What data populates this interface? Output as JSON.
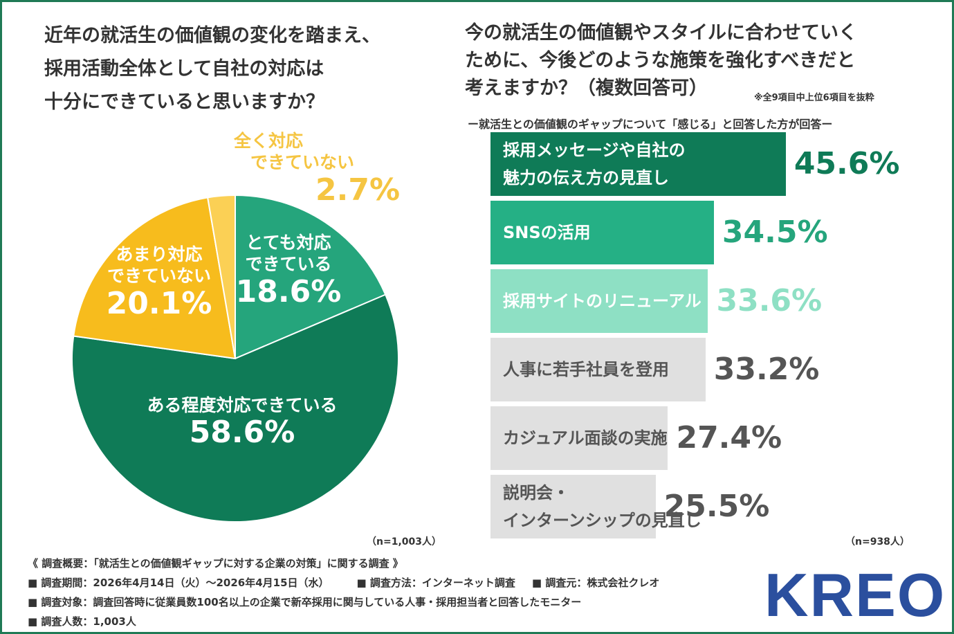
{
  "left_question": {
    "lines": [
      "近年の就活生の価値観の変化を踏まえ、",
      "採用活動全体として自社の対応は",
      "十分にできていると思いますか？"
    ]
  },
  "right_question": {
    "lines": [
      "今の就活生の価値観やスタイルに合わせていく",
      "ために、今後どのような施策を強化すべきだと",
      "考えますか？（複数回答可）"
    ],
    "note": "※全9項目中上位6項目を抜粋",
    "subtitle": "ー就活生との価値観のギャップについて「感じる」と回答した方が回答ー"
  },
  "chart_data": [
    {
      "type": "pie",
      "title": "近年の就活生の価値観の変化を踏まえ、採用活動全体として自社の対応は十分にできていると思いますか？",
      "slices": [
        {
          "label_lines": [
            "とても対応",
            "できている"
          ],
          "value": 18.6,
          "value_text": "18.6%",
          "color": "#25a57c",
          "text_color": "#ffffff"
        },
        {
          "label_lines": [
            "ある程度対応できている"
          ],
          "value": 58.6,
          "value_text": "58.6%",
          "color": "#0f7b57",
          "text_color": "#ffffff"
        },
        {
          "label_lines": [
            "あまり対応",
            "できていない"
          ],
          "value": 20.1,
          "value_text": "20.1%",
          "color": "#f7bc1d",
          "text_color": "#ffffff"
        },
        {
          "label_lines": [
            "全く対応",
            "できていない"
          ],
          "value": 2.7,
          "value_text": "2.7%",
          "color": "#fbd055",
          "text_color": "#f5c542"
        }
      ],
      "n_label": "（n=1,003人）"
    },
    {
      "type": "bar",
      "orientation": "horizontal",
      "title": "今の就活生の価値観やスタイルに合わせていくために、今後どのような施策を強化すべきだと考えますか？（複数回答可）",
      "items": [
        {
          "label_lines": [
            "採用メッセージや自社の",
            "魅力の伝え方の見直し"
          ],
          "value": 45.6,
          "value_text": "45.6%",
          "bar_color": "#0f7b57",
          "label_color": "#ffffff",
          "value_color": "#0f7b57"
        },
        {
          "label_lines": [
            "SNSの活用"
          ],
          "value": 34.5,
          "value_text": "34.5%",
          "bar_color": "#25b085",
          "label_color": "#ffffff",
          "value_color": "#25a57c"
        },
        {
          "label_lines": [
            "採用サイトのリニューアル"
          ],
          "value": 33.6,
          "value_text": "33.6%",
          "bar_color": "#8ee0c4",
          "label_color": "#ffffff",
          "value_color": "#8ee0c4"
        },
        {
          "label_lines": [
            "人事に若手社員を登用"
          ],
          "value": 33.2,
          "value_text": "33.2%",
          "bar_color": "#e0e0e0",
          "label_color": "#555555",
          "value_color": "#555555"
        },
        {
          "label_lines": [
            "カジュアル面談の実施"
          ],
          "value": 27.4,
          "value_text": "27.4%",
          "bar_color": "#e0e0e0",
          "label_color": "#555555",
          "value_color": "#555555"
        },
        {
          "label_lines": [
            "説明会・",
            "インターンシップの見直し"
          ],
          "value": 25.5,
          "value_text": "25.5%",
          "bar_color": "#e0e0e0",
          "label_color": "#555555",
          "value_color": "#555555"
        }
      ],
      "n_label": "（n=938人）"
    }
  ],
  "summary": {
    "title": "《 調査概要：「就活生との価値観ギャップに対する企業の対策」に関する調査 》",
    "period": "■ 調査期間：2026年4月14日（火）〜2026年4月15日（水）",
    "method": "■ 調査方法：インターネット調査",
    "source": "■ 調査元：株式会社クレオ",
    "target": "■ 調査対象：調査回答時に従業員数100名以上の企業で新卒採用に関与している人事・採用担当者と回答したモニター",
    "count": "■ 調査人数：1,003人"
  },
  "logo": {
    "text": "KREO",
    "color": "#2b4f9e"
  }
}
